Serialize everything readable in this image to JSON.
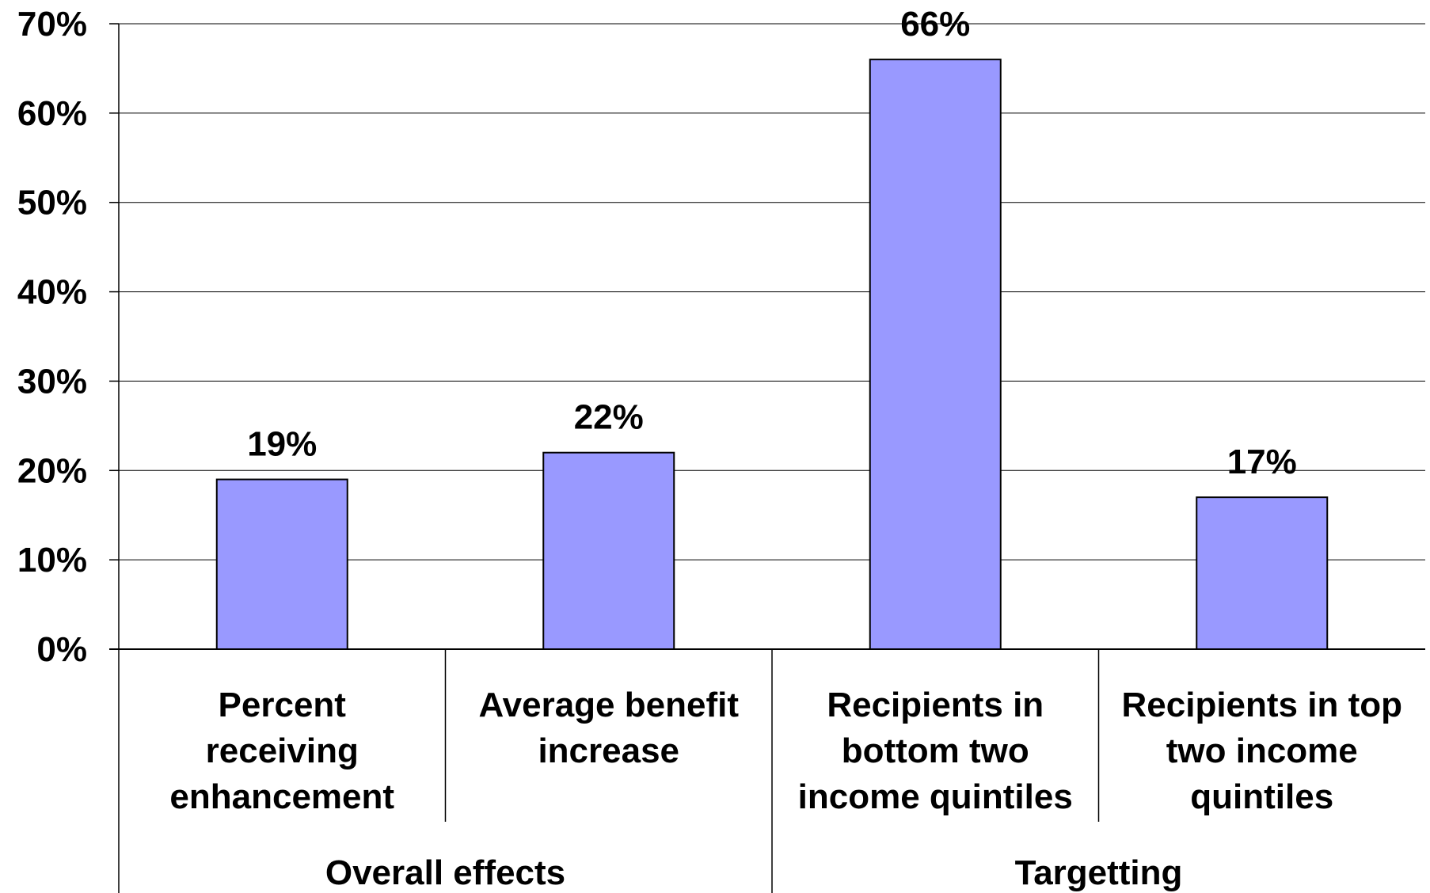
{
  "chart_data": {
    "type": "bar",
    "groups": [
      {
        "label": "Overall effects",
        "categories": [
          0,
          1
        ]
      },
      {
        "label": "Targetting",
        "categories": [
          2,
          3
        ]
      }
    ],
    "categories": [
      "Percent receiving enhancement",
      "Average benefit increase",
      "Recipients in bottom two income quintiles",
      "Recipients in top two income quintiles"
    ],
    "category_lines": [
      [
        "Percent",
        "receiving",
        "enhancement"
      ],
      [
        "Average benefit",
        "increase"
      ],
      [
        "Recipients in",
        "bottom two",
        "income quintiles"
      ],
      [
        "Recipients in top",
        "two income",
        "quintiles"
      ]
    ],
    "values": [
      19,
      22,
      66,
      17
    ],
    "data_labels": [
      "19%",
      "22%",
      "66%",
      "17%"
    ],
    "yticks": [
      0,
      10,
      20,
      30,
      40,
      50,
      60,
      70
    ],
    "ytick_labels": [
      "0%",
      "10%",
      "20%",
      "30%",
      "40%",
      "50%",
      "60%",
      "70%"
    ],
    "ylim": [
      0,
      70
    ],
    "grid": true,
    "legend": "none",
    "title": "",
    "xlabel": "",
    "ylabel": "",
    "colors": {
      "bar_fill": "#9999FF",
      "bar_stroke": "#000000",
      "grid": "#000000",
      "text": "#000000"
    }
  }
}
